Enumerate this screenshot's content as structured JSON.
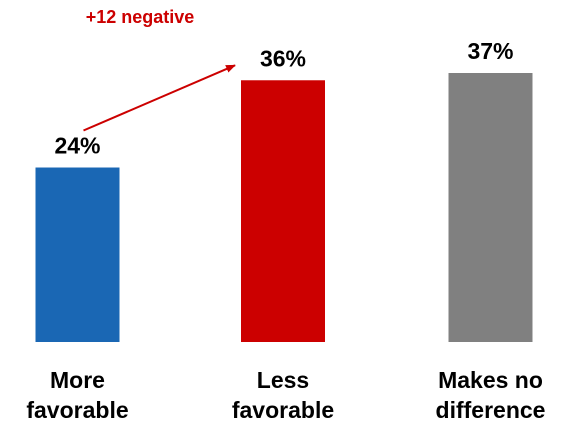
{
  "chart_data": {
    "type": "bar",
    "categories": [
      "More favorable",
      "Less favorable",
      "Makes no difference"
    ],
    "category_lines": [
      [
        "More",
        "favorable"
      ],
      [
        "Less",
        "favorable"
      ],
      [
        "Makes no",
        "difference"
      ]
    ],
    "values": [
      24,
      36,
      37
    ],
    "data_labels": [
      "24%",
      "36%",
      "37%"
    ],
    "ylim": [
      0,
      37
    ],
    "colors": [
      "#1a67b4",
      "#cc0000",
      "#808080"
    ],
    "grid": false,
    "legend": "none",
    "annotation": {
      "text": "+12 negative",
      "color": "#cc0000",
      "from_category": 0,
      "to_category": 1
    }
  }
}
